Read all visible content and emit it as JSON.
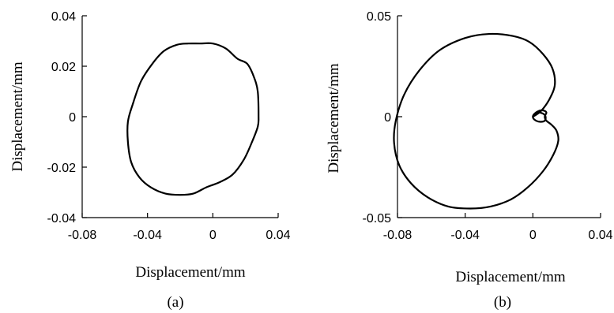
{
  "chart_data": [
    {
      "type": "line",
      "caption": "(a)",
      "xlabel": "Displacement/mm",
      "ylabel": "Displacement/mm",
      "xlim": [
        -0.08,
        0.04
      ],
      "ylim": [
        -0.04,
        0.04
      ],
      "xticks": [
        -0.08,
        -0.04,
        0,
        0.04
      ],
      "xtick_labels": [
        "-0.08",
        "-0.04",
        "0",
        "0.04"
      ],
      "yticks": [
        -0.04,
        -0.02,
        0,
        0.02,
        0.04
      ],
      "ytick_labels": [
        "-0.04",
        "-0.02",
        "0",
        "0.02",
        "0.04"
      ],
      "grid": false,
      "series": [
        {
          "x": [
            0.028,
            0.0275,
            0.025,
            0.021,
            0.015,
            0.008,
            0.0,
            -0.008,
            -0.015,
            -0.022,
            -0.03,
            -0.037,
            -0.044,
            -0.049,
            -0.052,
            -0.052,
            -0.05,
            -0.045,
            -0.038,
            -0.029,
            -0.02,
            -0.012,
            -0.004,
            0.004,
            0.012,
            0.019,
            0.024,
            0.0275,
            0.028
          ],
          "y": [
            0.0,
            0.01,
            0.016,
            0.021,
            0.023,
            0.027,
            0.029,
            0.029,
            0.029,
            0.0285,
            0.026,
            0.021,
            0.014,
            0.005,
            -0.002,
            -0.01,
            -0.018,
            -0.024,
            -0.028,
            -0.0305,
            -0.031,
            -0.0305,
            -0.028,
            -0.026,
            -0.023,
            -0.017,
            -0.01,
            -0.004,
            0.0
          ]
        }
      ]
    },
    {
      "type": "line",
      "caption": "(b)",
      "xlabel": "Displacement/mm",
      "ylabel": "Displacement/mm",
      "xlim": [
        -0.08,
        0.04
      ],
      "ylim": [
        -0.05,
        0.05
      ],
      "xticks": [
        -0.08,
        -0.04,
        0,
        0.04
      ],
      "xtick_labels": [
        "-0.08",
        "-0.04",
        "0",
        "0.04"
      ],
      "yticks": [
        -0.05,
        0,
        0.05
      ],
      "ytick_labels": [
        "-0.05",
        "0",
        "0.05"
      ],
      "grid": false,
      "series": [
        {
          "x": [
            0.0,
            0.005,
            0.01,
            0.013,
            0.0115,
            0.006,
            -0.002,
            -0.012,
            -0.026,
            -0.04,
            -0.055,
            -0.067,
            -0.076,
            -0.081,
            -0.082,
            -0.079,
            -0.072,
            -0.062,
            -0.05,
            -0.037,
            -0.025,
            -0.013,
            -0.003,
            0.006,
            0.012,
            0.015,
            0.014,
            0.011,
            0.008,
            0.007,
            0.008,
            0.0065,
            0.004,
            0.001,
            0.0,
            0.001,
            0.004,
            0.007,
            0.0075,
            0.006,
            0.003,
            0.0
          ],
          "y": [
            0.0,
            0.003,
            0.009,
            0.016,
            0.024,
            0.031,
            0.037,
            0.04,
            0.041,
            0.039,
            0.033,
            0.023,
            0.011,
            -0.002,
            -0.013,
            -0.024,
            -0.033,
            -0.04,
            -0.0445,
            -0.0455,
            -0.0445,
            -0.041,
            -0.035,
            -0.027,
            -0.019,
            -0.012,
            -0.007,
            -0.004,
            -0.002,
            0.0,
            0.002,
            0.003,
            0.003,
            0.0015,
            0.0,
            -0.0015,
            -0.0025,
            -0.002,
            0.0,
            0.0015,
            0.002,
            0.0
          ]
        }
      ]
    }
  ]
}
